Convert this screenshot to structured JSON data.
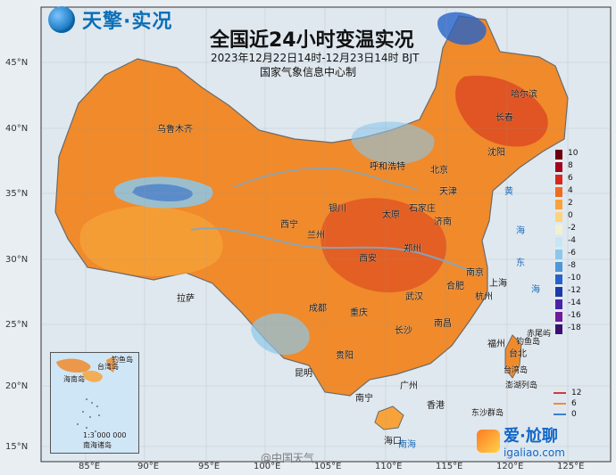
{
  "brand": {
    "name": "天擎·实况"
  },
  "header": {
    "title": "全国近24小时变温实况",
    "subtitle": "2023年12月22日14时-12月23日14时 BJT",
    "maker": "国家气象信息中心制"
  },
  "axes": {
    "lat_labels": [
      "45°N",
      "40°N",
      "35°N",
      "30°N",
      "25°N",
      "20°N",
      "15°N"
    ],
    "lon_labels": [
      "85°E",
      "90°E",
      "95°E",
      "100°E",
      "105°E",
      "110°E",
      "115°E",
      "120°E",
      "125°E"
    ]
  },
  "labels": {
    "cities": [
      "哈尔滨",
      "长春",
      "沈阳",
      "呼和浩特",
      "北京",
      "天津",
      "石家庄",
      "太原",
      "济南",
      "银川",
      "西宁",
      "兰州",
      "西安",
      "郑州",
      "南京",
      "合肥",
      "上海",
      "杭州",
      "武汉",
      "成都",
      "重庆",
      "长沙",
      "南昌",
      "福州",
      "贵阳",
      "昆明",
      "南宁",
      "广州",
      "香港",
      "海口",
      "拉萨",
      "乌鲁木齐",
      "台北"
    ],
    "seas": [
      "黄",
      "海",
      "东",
      "海",
      "南海"
    ],
    "islands": [
      "赤尾屿",
      "钓鱼岛",
      "台湾岛",
      "澎湖列岛",
      "东沙群岛"
    ]
  },
  "legend": {
    "ticks": [
      "10",
      "8",
      "6",
      "4",
      "2",
      "0",
      "-2",
      "-4",
      "-6",
      "-8",
      "-10",
      "-12",
      "-14",
      "-16",
      "-18"
    ],
    "colors": [
      "#6b0010",
      "#a3001b",
      "#d32a1d",
      "#f06a1f",
      "#f7a33a",
      "#fdd37d",
      "#f1f1d0",
      "#c4e6f5",
      "#8cc7ea",
      "#4e96d8",
      "#2663c9",
      "#1d3aa8",
      "#4a24a6",
      "#6f1b9c",
      "#3b1070"
    ],
    "line_items": [
      {
        "label": "12",
        "color": "#d13a3a"
      },
      {
        "label": "6",
        "color": "#e98b48"
      },
      {
        "label": "0",
        "color": "#3f7fd0"
      }
    ]
  },
  "inset": {
    "labels": [
      "台湾岛",
      "海南岛",
      "钓鱼岛",
      "1:3 000 000",
      "南海诸岛"
    ]
  },
  "watermarks": {
    "weibo": "@中国天气",
    "site_title": "爱·尬聊",
    "site_url": "igaliao.com"
  }
}
